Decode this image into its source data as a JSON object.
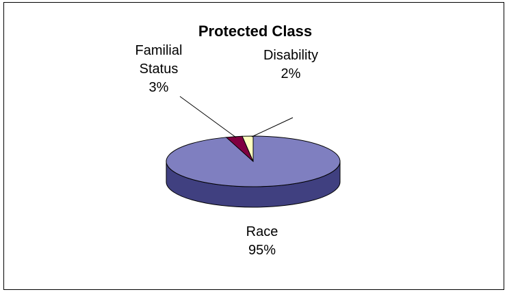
{
  "chart_data": {
    "type": "pie",
    "title": "Protected Class",
    "categories": [
      "Race",
      "Familial Status",
      "Disability"
    ],
    "values": [
      95,
      3,
      2
    ],
    "value_labels": [
      "95%",
      "3%",
      "2%"
    ],
    "colors": [
      "#7f7fc0",
      "#800040",
      "#ffffc0"
    ],
    "side_colors": [
      "#404080",
      "#400020",
      "#808060"
    ]
  }
}
